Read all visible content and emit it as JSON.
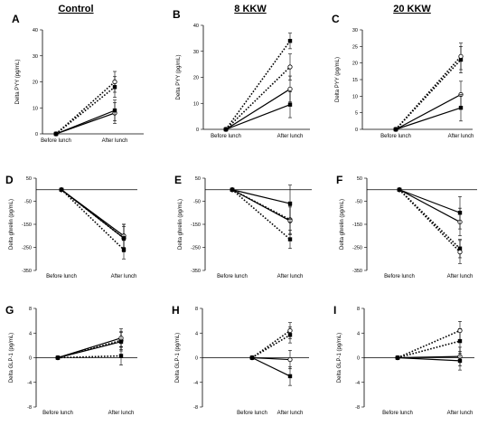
{
  "column_headers": [
    "Control",
    "8 KKW",
    "20 KKW"
  ],
  "colors": {
    "line": "#000000",
    "background": "#ffffff"
  },
  "chart_data": [
    {
      "type": "line",
      "panel_letter": "A",
      "column": "Control",
      "ylabel": "Delta PYY (pg/mL)",
      "categories": [
        "Before lunch",
        "After lunch"
      ],
      "ylim": [
        0,
        40
      ],
      "yticks": [
        0,
        10,
        20,
        30,
        40
      ],
      "series": [
        {
          "style": "dotted",
          "marker": "square-filled",
          "values": [
            0,
            18
          ],
          "error": [
            0,
            4
          ]
        },
        {
          "style": "dotted",
          "marker": "circle-open",
          "values": [
            0,
            20
          ],
          "error": [
            0,
            4
          ]
        },
        {
          "style": "solid",
          "marker": "circle-open",
          "values": [
            0,
            8
          ],
          "error": [
            0,
            4
          ]
        },
        {
          "style": "solid",
          "marker": "square-filled",
          "values": [
            0,
            9
          ],
          "error": [
            0,
            4
          ]
        }
      ]
    },
    {
      "type": "line",
      "panel_letter": "B",
      "column": "8 KKW",
      "ylabel": "Delta PYY (pg/mL)",
      "categories": [
        "Before lunch",
        "After lunch"
      ],
      "ylim": [
        0,
        40
      ],
      "yticks": [
        0,
        10,
        20,
        30,
        40
      ],
      "series": [
        {
          "style": "dotted",
          "marker": "square-filled",
          "values": [
            0,
            34
          ],
          "error": [
            0,
            3
          ]
        },
        {
          "style": "dotted",
          "marker": "circle-open",
          "values": [
            0,
            24
          ],
          "error": [
            0,
            5
          ]
        },
        {
          "style": "solid",
          "marker": "circle-open",
          "values": [
            0,
            15.5
          ],
          "error": [
            0,
            5
          ]
        },
        {
          "style": "solid",
          "marker": "square-filled",
          "values": [
            0,
            9.5
          ],
          "error": [
            0,
            5
          ]
        }
      ]
    },
    {
      "type": "line",
      "panel_letter": "C",
      "column": "20 KKW",
      "ylabel": "Delta PYY (pg/mL)",
      "categories": [
        "Before lunch",
        "After lunch"
      ],
      "ylim": [
        0,
        30
      ],
      "yticks": [
        0,
        5,
        10,
        15,
        20,
        25,
        30
      ],
      "series": [
        {
          "style": "dotted",
          "marker": "square-filled",
          "values": [
            0,
            21
          ],
          "error": [
            0,
            4
          ]
        },
        {
          "style": "dotted",
          "marker": "circle-open",
          "values": [
            0,
            22
          ],
          "error": [
            0,
            4
          ]
        },
        {
          "style": "solid",
          "marker": "circle-open",
          "values": [
            0,
            10.5
          ],
          "error": [
            0,
            4
          ]
        },
        {
          "style": "solid",
          "marker": "square-filled",
          "values": [
            0,
            6.5
          ],
          "error": [
            0,
            4
          ]
        }
      ]
    },
    {
      "type": "line",
      "panel_letter": "D",
      "column": "Control",
      "ylabel": "Delta ghrelin (pg/mL)",
      "categories": [
        "Before lunch",
        "After lunch"
      ],
      "ylim": [
        -350,
        50
      ],
      "yticks": [
        50,
        -50,
        -150,
        -250,
        -350
      ],
      "series": [
        {
          "style": "dotted",
          "marker": "square-filled",
          "values": [
            0,
            -260
          ],
          "error": [
            0,
            40
          ]
        },
        {
          "style": "dotted",
          "marker": "circle-open",
          "values": [
            0,
            -210
          ],
          "error": [
            0,
            50
          ]
        },
        {
          "style": "solid",
          "marker": "circle-open",
          "values": [
            0,
            -200
          ],
          "error": [
            0,
            50
          ]
        },
        {
          "style": "solid",
          "marker": "square-filled",
          "values": [
            0,
            -210
          ],
          "error": [
            0,
            60
          ]
        }
      ]
    },
    {
      "type": "line",
      "panel_letter": "E",
      "column": "8 KKW",
      "ylabel": "Delta ghrelin (pg/mL)",
      "categories": [
        "Before lunch",
        "After lunch"
      ],
      "ylim": [
        -350,
        50
      ],
      "yticks": [
        50,
        -50,
        -150,
        -250,
        -350
      ],
      "series": [
        {
          "style": "dotted",
          "marker": "square-filled",
          "values": [
            0,
            -215
          ],
          "error": [
            0,
            40
          ]
        },
        {
          "style": "dotted",
          "marker": "circle-open",
          "values": [
            0,
            -130
          ],
          "error": [
            0,
            60
          ]
        },
        {
          "style": "solid",
          "marker": "circle-open",
          "values": [
            0,
            -135
          ],
          "error": [
            0,
            60
          ]
        },
        {
          "style": "solid",
          "marker": "square-filled",
          "values": [
            0,
            -60
          ],
          "error": [
            0,
            80
          ]
        }
      ]
    },
    {
      "type": "line",
      "panel_letter": "F",
      "column": "20 KKW",
      "ylabel": "Delta ghrelin (pg/mL)",
      "categories": [
        "Before lunch",
        "After lunch"
      ],
      "ylim": [
        -350,
        50
      ],
      "yticks": [
        50,
        -50,
        -150,
        -250,
        -350
      ],
      "series": [
        {
          "style": "dotted",
          "marker": "square-filled",
          "values": [
            0,
            -255
          ],
          "error": [
            0,
            40
          ]
        },
        {
          "style": "dotted",
          "marker": "circle-open",
          "values": [
            0,
            -270
          ],
          "error": [
            0,
            50
          ]
        },
        {
          "style": "solid",
          "marker": "circle-open",
          "values": [
            0,
            -140
          ],
          "error": [
            0,
            60
          ]
        },
        {
          "style": "solid",
          "marker": "square-filled",
          "values": [
            0,
            -100
          ],
          "error": [
            0,
            70
          ]
        }
      ]
    },
    {
      "type": "line",
      "panel_letter": "G",
      "column": "Control",
      "ylabel": "Delta GLP-1 (pg/mL)",
      "categories": [
        "Before lunch",
        "After lunch"
      ],
      "ylim": [
        -8,
        8
      ],
      "yticks": [
        8,
        4,
        0,
        -4,
        -8
      ],
      "series": [
        {
          "style": "dotted",
          "marker": "square-filled",
          "values": [
            0,
            0.3
          ],
          "error": [
            0,
            1.5
          ]
        },
        {
          "style": "dotted",
          "marker": "circle-open",
          "values": [
            0,
            2.8
          ],
          "error": [
            0,
            1.5
          ]
        },
        {
          "style": "solid",
          "marker": "circle-open",
          "values": [
            0,
            3.2
          ],
          "error": [
            0,
            1.5
          ]
        },
        {
          "style": "solid",
          "marker": "square-filled",
          "values": [
            0,
            2.6
          ],
          "error": [
            0,
            1.5
          ]
        }
      ]
    },
    {
      "type": "line",
      "panel_letter": "H",
      "column": "8 KKW",
      "ylabel": "Delta GLP-1 (pg/mL)",
      "categories": [
        "Before lunch",
        "After lunch"
      ],
      "ylim": [
        -8,
        8
      ],
      "yticks": [
        8,
        4,
        0,
        -4,
        -8
      ],
      "series": [
        {
          "style": "dotted",
          "marker": "square-filled",
          "values": [
            0,
            3.7
          ],
          "error": [
            0,
            1.3
          ]
        },
        {
          "style": "dotted",
          "marker": "circle-open",
          "values": [
            0,
            4.4
          ],
          "error": [
            0,
            1.3
          ]
        },
        {
          "style": "solid",
          "marker": "circle-open",
          "values": [
            0,
            -0.3
          ],
          "error": [
            0,
            1.5
          ]
        },
        {
          "style": "solid",
          "marker": "square-filled",
          "values": [
            0,
            -3
          ],
          "error": [
            0,
            1.5
          ]
        }
      ]
    },
    {
      "type": "line",
      "panel_letter": "I",
      "column": "20 KKW",
      "ylabel": "Delta GLP-1 (pg/mL)",
      "categories": [
        "Before lunch",
        "After lunch"
      ],
      "ylim": [
        -8,
        8
      ],
      "yticks": [
        8,
        4,
        0,
        -4,
        -8
      ],
      "series": [
        {
          "style": "dotted",
          "marker": "square-filled",
          "values": [
            0,
            2.7
          ],
          "error": [
            0,
            2
          ]
        },
        {
          "style": "dotted",
          "marker": "circle-open",
          "values": [
            0,
            4.4
          ],
          "error": [
            0,
            1.5
          ]
        },
        {
          "style": "solid",
          "marker": "circle-open",
          "values": [
            0,
            0.2
          ],
          "error": [
            0,
            1.5
          ]
        },
        {
          "style": "solid",
          "marker": "square-filled",
          "values": [
            0,
            -0.5
          ],
          "error": [
            0,
            1.5
          ]
        }
      ]
    }
  ]
}
